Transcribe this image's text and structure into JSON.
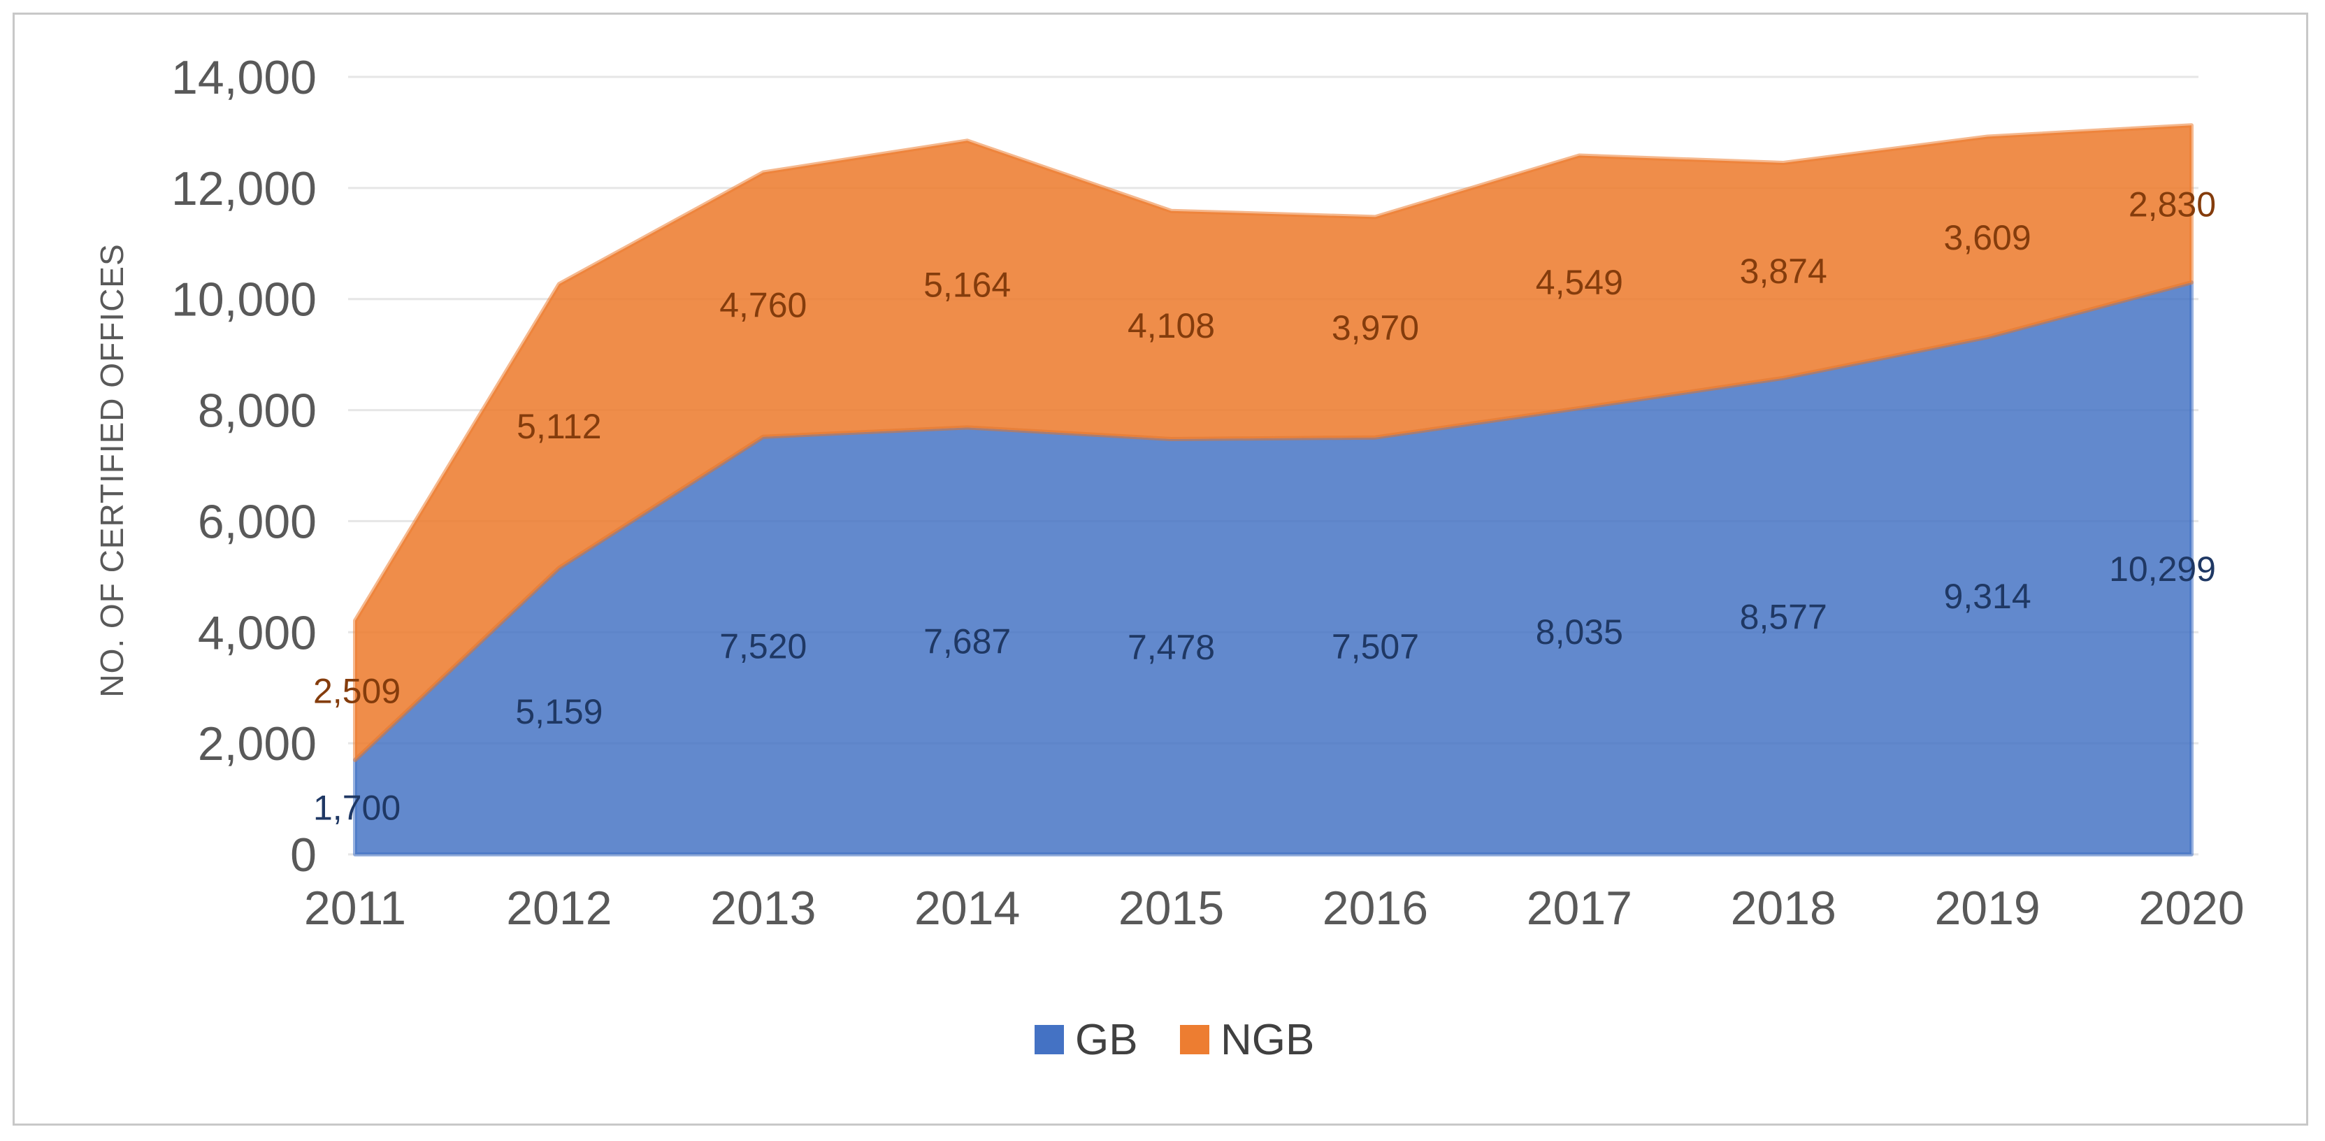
{
  "chart_data": {
    "type": "area",
    "stacked": true,
    "title": "",
    "xlabel": "",
    "ylabel": "NO. OF CERTIFIED OFFICES",
    "x": [
      "2011",
      "2012",
      "2013",
      "2014",
      "2015",
      "2016",
      "2017",
      "2018",
      "2019",
      "2020"
    ],
    "ylim": [
      0,
      14000
    ],
    "yticks": [
      0,
      2000,
      4000,
      6000,
      8000,
      10000,
      12000,
      14000
    ],
    "ytick_labels": [
      "0",
      "2,000",
      "4,000",
      "6,000",
      "8,000",
      "10,000",
      "12,000",
      "14,000"
    ],
    "grid": true,
    "legend_position": "bottom",
    "series": [
      {
        "name": "GB",
        "color": "#4472c4",
        "label_color": "#1f3864",
        "values": [
          1700,
          5159,
          7520,
          7687,
          7478,
          7507,
          8035,
          8577,
          9314,
          10299
        ],
        "labels": [
          "1,700",
          "5,159",
          "7,520",
          "7,687",
          "7,478",
          "7,507",
          "8,035",
          "8,577",
          "9,314",
          "10,299"
        ]
      },
      {
        "name": "NGB",
        "color": "#ed7d31",
        "label_color": "#843c0c",
        "values": [
          2509,
          5112,
          4760,
          5164,
          4108,
          3970,
          4549,
          3874,
          3609,
          2830
        ],
        "labels": [
          "2,509",
          "5,112",
          "4,760",
          "5,164",
          "4,108",
          "3,970",
          "4,549",
          "3,874",
          "3,609",
          "2,830"
        ]
      }
    ]
  }
}
